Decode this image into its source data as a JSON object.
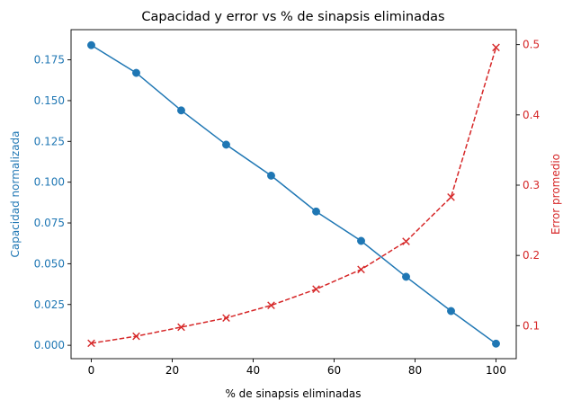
{
  "chart_data": {
    "type": "line",
    "title": "Capacidad y error vs % de sinapsis eliminadas",
    "xlabel": "% de sinapsis eliminadas",
    "ylabel_left": "Capacidad normalizada",
    "ylabel_right": "Error promedio",
    "xlim": [
      -5,
      105
    ],
    "ylim_left": [
      -0.0082,
      0.1935
    ],
    "ylim_right": [
      0.0531,
      0.5213
    ],
    "x_ticks": [
      0,
      20,
      40,
      60,
      80,
      100
    ],
    "x_tick_labels": [
      "0",
      "20",
      "40",
      "60",
      "80",
      "100"
    ],
    "y_left_ticks": [
      0.0,
      0.025,
      0.05,
      0.075,
      0.1,
      0.125,
      0.15,
      0.175
    ],
    "y_left_tick_labels": [
      "0.000",
      "0.025",
      "0.050",
      "0.075",
      "0.100",
      "0.125",
      "0.150",
      "0.175"
    ],
    "y_right_ticks": [
      0.1,
      0.2,
      0.3,
      0.4,
      0.5
    ],
    "y_right_tick_labels": [
      "0.1",
      "0.2",
      "0.3",
      "0.4",
      "0.5"
    ],
    "grid": false,
    "x": [
      0,
      11.11,
      22.22,
      33.33,
      44.44,
      55.56,
      66.67,
      77.78,
      88.89,
      100
    ],
    "series": [
      {
        "axis": "left",
        "color": "#1f77b4",
        "marker": "circle",
        "line_style": "solid",
        "values": [
          0.184,
          0.167,
          0.144,
          0.123,
          0.104,
          0.082,
          0.064,
          0.042,
          0.021,
          0.001
        ]
      },
      {
        "axis": "right",
        "color": "#d62728",
        "marker": "x",
        "line_style": "dashed",
        "values": [
          0.075,
          0.085,
          0.098,
          0.111,
          0.129,
          0.152,
          0.18,
          0.22,
          0.283,
          0.496
        ]
      }
    ]
  }
}
